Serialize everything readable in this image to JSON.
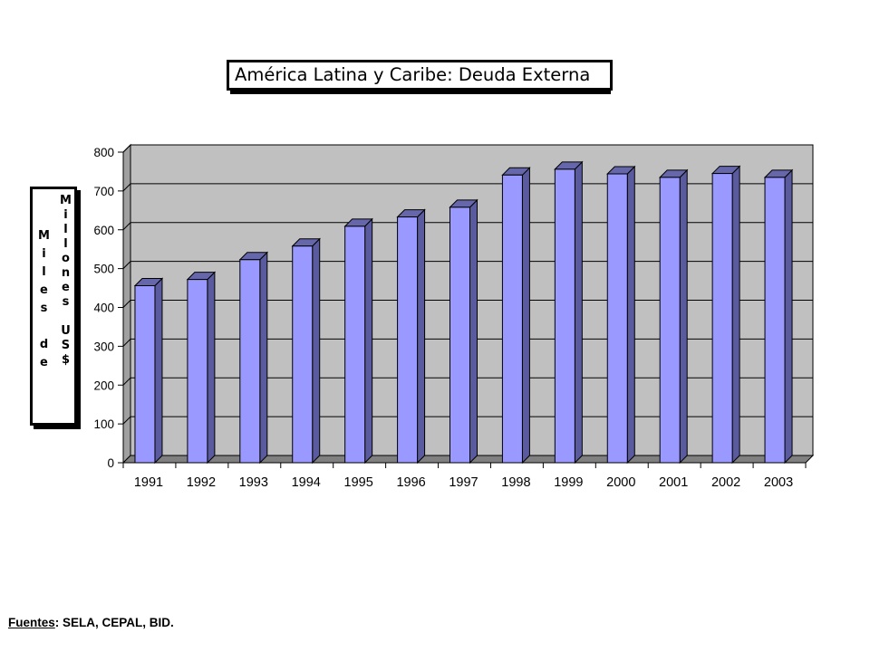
{
  "chart_data": {
    "type": "bar",
    "title": "América Latina y Caribe: Deuda Externa",
    "ylabel": "Miles de Millones US$",
    "ylabel_columns": [
      [
        "M",
        "i",
        "l",
        "e",
        "s",
        "",
        "d",
        "e"
      ],
      [
        "M",
        "i",
        "l",
        "l",
        "o",
        "n",
        "e",
        "s",
        "",
        "U",
        "S",
        "$"
      ]
    ],
    "categories": [
      "1991",
      "1992",
      "1993",
      "1994",
      "1995",
      "1996",
      "1997",
      "1998",
      "1999",
      "2000",
      "2001",
      "2002",
      "2003"
    ],
    "values": [
      456,
      472,
      523,
      558,
      609,
      633,
      658,
      741,
      756,
      744,
      735,
      745,
      735
    ],
    "ylim": [
      0,
      800
    ],
    "yticks": [
      0,
      100,
      200,
      300,
      400,
      500,
      600,
      700,
      800
    ],
    "grid": true,
    "legend": "none"
  },
  "sources": {
    "label": "Fuentes",
    "text": ":  SELA, CEPAL, BID."
  },
  "colors": {
    "bar_front": "#9999ff",
    "bar_side": "#5a5a9e",
    "bar_top": "#6666aa",
    "plot_wall": "#c0c0c0",
    "floor": "#808080"
  }
}
